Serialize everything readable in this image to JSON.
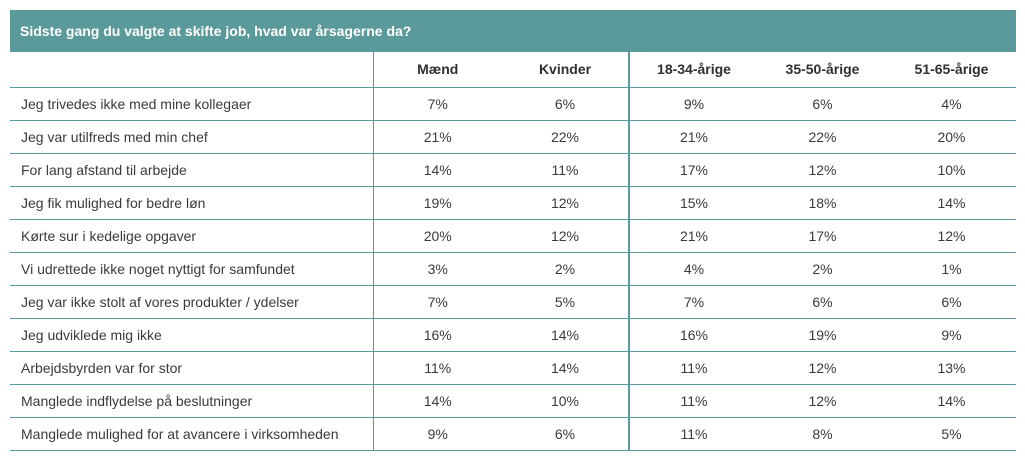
{
  "title": "Sidste gang du valgte at skifte job, hvad var årsagerne da?",
  "colors": {
    "header_bg": "#5b9a9a",
    "border": "#5b9a9a",
    "text": "#3a3a3a"
  },
  "chart_data": {
    "type": "table",
    "title": "Sidste gang du valgte at skifte job, hvad var årsagerne da?",
    "columns": [
      "Mænd",
      "Kvinder",
      "18-34-årige",
      "35-50-årige",
      "51-65-årige"
    ],
    "rows": [
      {
        "label": "Jeg trivedes ikke med mine kollegaer",
        "values": [
          "7%",
          "6%",
          "9%",
          "6%",
          "4%"
        ]
      },
      {
        "label": "Jeg var utilfreds med min chef",
        "values": [
          "21%",
          "22%",
          "21%",
          "22%",
          "20%"
        ]
      },
      {
        "label": "For lang afstand til arbejde",
        "values": [
          "14%",
          "11%",
          "17%",
          "12%",
          "10%"
        ]
      },
      {
        "label": "Jeg fik mulighed for bedre løn",
        "values": [
          "19%",
          "12%",
          "15%",
          "18%",
          "14%"
        ]
      },
      {
        "label": "Kørte sur i kedelige opgaver",
        "values": [
          "20%",
          "12%",
          "21%",
          "17%",
          "12%"
        ]
      },
      {
        "label": "Vi udrettede ikke noget nyttigt for samfundet",
        "values": [
          "3%",
          "2%",
          "4%",
          "2%",
          "1%"
        ]
      },
      {
        "label": "Jeg var ikke stolt af vores produkter / ydelser",
        "values": [
          "7%",
          "5%",
          "7%",
          "6%",
          "6%"
        ]
      },
      {
        "label": "Jeg udviklede mig ikke",
        "values": [
          "16%",
          "14%",
          "16%",
          "19%",
          "9%"
        ]
      },
      {
        "label": "Arbejdsbyrden var for stor",
        "values": [
          "11%",
          "14%",
          "11%",
          "12%",
          "13%"
        ]
      },
      {
        "label": "Manglede indflydelse på beslutninger",
        "values": [
          "14%",
          "10%",
          "11%",
          "12%",
          "14%"
        ]
      },
      {
        "label": "Manglede mulighed for at avancere i virksomheden",
        "values": [
          "9%",
          "6%",
          "11%",
          "8%",
          "5%"
        ]
      }
    ]
  }
}
